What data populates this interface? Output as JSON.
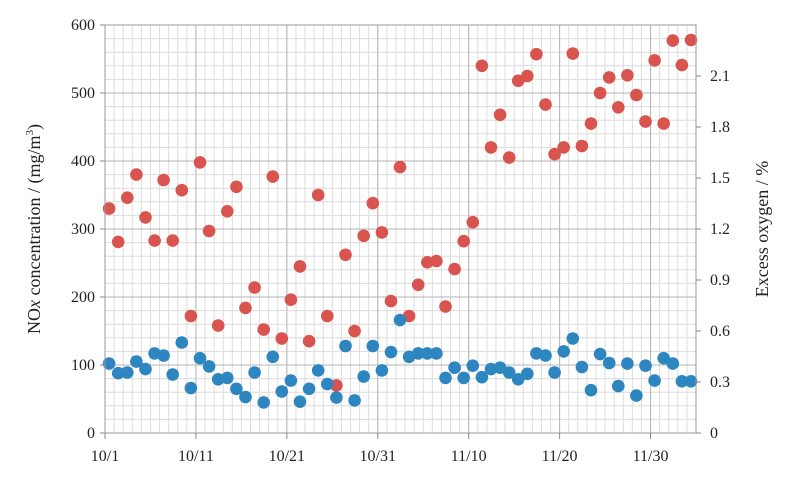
{
  "chart_data": {
    "type": "scatter",
    "x_ticks": [
      "10/1",
      "10/11",
      "10/21",
      "10/31",
      "11/10",
      "11/20",
      "11/30"
    ],
    "xlim_days": [
      0,
      65
    ],
    "y_left": {
      "label_main": "NO",
      "label_italic": "x",
      "label_rest": " concentration / (mg/m",
      "label_sup": "3",
      "label_end": ")",
      "min": 0,
      "max": 600,
      "ticks": [
        "0",
        "100",
        "200",
        "300",
        "400",
        "500",
        "600"
      ]
    },
    "y_right": {
      "label": "Excess oxygen / %",
      "min": 0,
      "max": 2.4,
      "ticks": [
        "0",
        "0.3",
        "0.6",
        "0.9",
        "1.2",
        "1.5",
        "1.8",
        "2.1"
      ]
    },
    "grid": true,
    "legend": "none",
    "series": [
      {
        "color": "#d9534f",
        "axis": "left",
        "points": [
          [
            0,
            330
          ],
          [
            1,
            281
          ],
          [
            2,
            346
          ],
          [
            3,
            380
          ],
          [
            4,
            317
          ],
          [
            5,
            283
          ],
          [
            6,
            372
          ],
          [
            7,
            283
          ],
          [
            8,
            357
          ],
          [
            9,
            172
          ],
          [
            10,
            398
          ],
          [
            11,
            297
          ],
          [
            12,
            158
          ],
          [
            13,
            326
          ],
          [
            14,
            362
          ],
          [
            15,
            184
          ],
          [
            16,
            214
          ],
          [
            17,
            152
          ],
          [
            18,
            377
          ],
          [
            19,
            139
          ],
          [
            20,
            196
          ],
          [
            21,
            245
          ],
          [
            22,
            135
          ],
          [
            23,
            350
          ],
          [
            24,
            172
          ],
          [
            25,
            70
          ],
          [
            26,
            262
          ],
          [
            27,
            150
          ],
          [
            28,
            290
          ],
          [
            29,
            338
          ],
          [
            30,
            295
          ],
          [
            31,
            194
          ],
          [
            32,
            391
          ],
          [
            33,
            172
          ],
          [
            34,
            218
          ],
          [
            35,
            251
          ],
          [
            36,
            253
          ],
          [
            37,
            186
          ],
          [
            38,
            241
          ],
          [
            39,
            282
          ],
          [
            40,
            310
          ],
          [
            41,
            540
          ],
          [
            42,
            420
          ],
          [
            43,
            468
          ],
          [
            44,
            405
          ],
          [
            45,
            518
          ],
          [
            46,
            525
          ],
          [
            47,
            557
          ],
          [
            48,
            483
          ],
          [
            49,
            410
          ],
          [
            50,
            420
          ],
          [
            51,
            558
          ],
          [
            52,
            422
          ],
          [
            53,
            455
          ],
          [
            54,
            500
          ],
          [
            55,
            523
          ],
          [
            56,
            479
          ],
          [
            57,
            526
          ],
          [
            58,
            497
          ],
          [
            59,
            458
          ],
          [
            60,
            548
          ],
          [
            61,
            455
          ],
          [
            62,
            577
          ],
          [
            63,
            541
          ],
          [
            64,
            578
          ]
        ]
      },
      {
        "color": "#2e86c1",
        "axis": "left",
        "points": [
          [
            0,
            102
          ],
          [
            1,
            88
          ],
          [
            2,
            89
          ],
          [
            3,
            105
          ],
          [
            4,
            94
          ],
          [
            5,
            117
          ],
          [
            6,
            114
          ],
          [
            7,
            86
          ],
          [
            8,
            133
          ],
          [
            9,
            66
          ],
          [
            10,
            110
          ],
          [
            11,
            98
          ],
          [
            12,
            79
          ],
          [
            13,
            81
          ],
          [
            14,
            65
          ],
          [
            15,
            53
          ],
          [
            16,
            89
          ],
          [
            17,
            45
          ],
          [
            18,
            112
          ],
          [
            19,
            61
          ],
          [
            20,
            77
          ],
          [
            21,
            46
          ],
          [
            22,
            65
          ],
          [
            23,
            92
          ],
          [
            24,
            72
          ],
          [
            25,
            52
          ],
          [
            26,
            128
          ],
          [
            27,
            48
          ],
          [
            28,
            83
          ],
          [
            29,
            128
          ],
          [
            30,
            92
          ],
          [
            31,
            119
          ],
          [
            32,
            166
          ],
          [
            33,
            112
          ],
          [
            34,
            117
          ],
          [
            35,
            117
          ],
          [
            36,
            117
          ],
          [
            37,
            81
          ],
          [
            38,
            96
          ],
          [
            39,
            81
          ],
          [
            40,
            99
          ],
          [
            41,
            82
          ],
          [
            42,
            94
          ],
          [
            43,
            96
          ],
          [
            44,
            89
          ],
          [
            45,
            79
          ],
          [
            46,
            87
          ],
          [
            47,
            117
          ],
          [
            48,
            114
          ],
          [
            49,
            89
          ],
          [
            50,
            120
          ],
          [
            51,
            139
          ],
          [
            52,
            97
          ],
          [
            53,
            63
          ],
          [
            54,
            116
          ],
          [
            55,
            103
          ],
          [
            56,
            69
          ],
          [
            57,
            102
          ],
          [
            58,
            55
          ],
          [
            59,
            99
          ],
          [
            60,
            77
          ],
          [
            61,
            110
          ],
          [
            62,
            102
          ],
          [
            63,
            76
          ],
          [
            64,
            76
          ]
        ]
      }
    ]
  }
}
